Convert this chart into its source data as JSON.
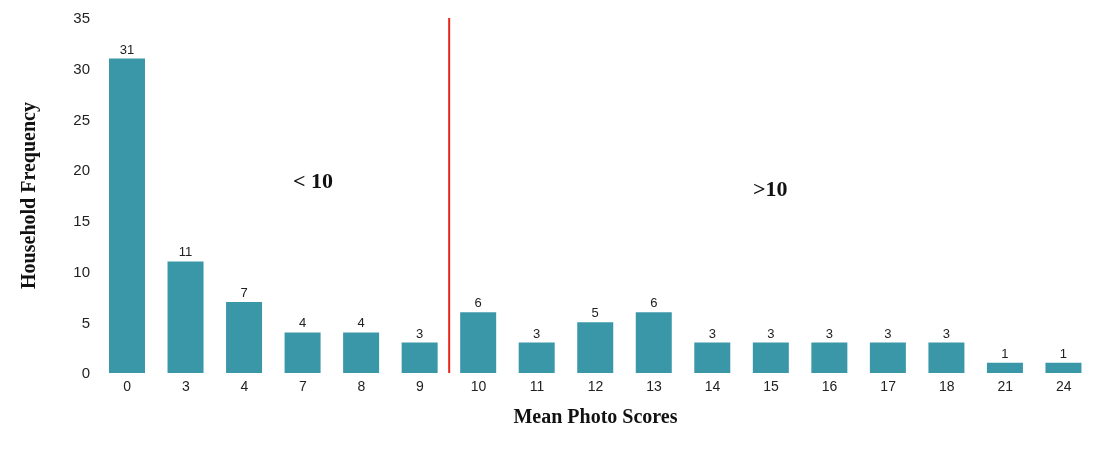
{
  "chart_data": {
    "type": "bar",
    "xlabel": "Mean Photo Scores",
    "ylabel": "Household Frequency",
    "categories": [
      "0",
      "3",
      "4",
      "7",
      "8",
      "9",
      "10",
      "11",
      "12",
      "13",
      "14",
      "15",
      "16",
      "17",
      "18",
      "21",
      "24"
    ],
    "values": [
      31,
      11,
      7,
      4,
      4,
      3,
      6,
      3,
      5,
      6,
      3,
      3,
      3,
      3,
      3,
      1,
      1
    ],
    "color": "#3a97a8",
    "data_labels": true,
    "ylim": [
      0,
      35
    ],
    "yticks": [
      0,
      5,
      10,
      15,
      20,
      25,
      30,
      35
    ],
    "ref_lines": [
      {
        "axis": "x",
        "value": "10",
        "color": "#e8261c"
      }
    ],
    "annotations": [
      "< 10",
      ">10"
    ]
  }
}
